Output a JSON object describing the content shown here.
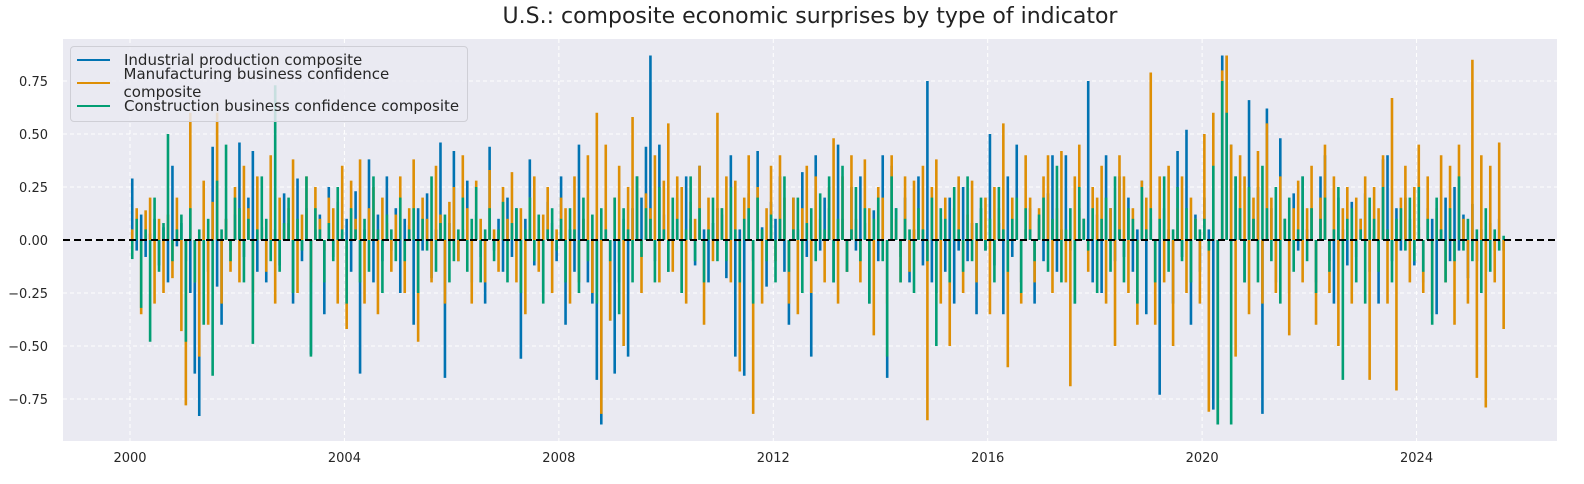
{
  "chart_data": {
    "type": "line",
    "title": "U.S.: composite economic surprises by type of indicator",
    "xlabel": "",
    "ylabel": "",
    "x_start": "2000-01",
    "x_frequency": "monthly",
    "xlim": [
      1998.75,
      2026.62
    ],
    "ylim": [
      -0.948,
      0.948
    ],
    "x_ticks": [
      2000,
      2004,
      2008,
      2012,
      2016,
      2020,
      2024
    ],
    "x_tick_labels": [
      "2000",
      "2004",
      "2008",
      "2012",
      "2016",
      "2020",
      "2024"
    ],
    "y_ticks": [
      -0.75,
      -0.5,
      -0.25,
      0,
      0.25,
      0.5,
      0.75
    ],
    "y_tick_labels": [
      "−0.75",
      "−0.50",
      "−0.25",
      "0.00",
      "0.25",
      "0.50",
      "0.75"
    ],
    "grid": true,
    "zero_line": {
      "value": 0,
      "style": "dashed",
      "color": "#000000"
    },
    "legend_position": "top-left",
    "background": "#eaeaf2",
    "series": [
      {
        "name": "Industrial production composite",
        "color": "#0173b2",
        "values": [
          0.29,
          -0.05,
          0.12,
          -0.08,
          0.03,
          0.1,
          -0.12,
          0.06,
          -0.2,
          0.35,
          -0.03,
          0.08,
          -0.1,
          -0.25,
          -0.63,
          -0.83,
          0.05,
          -0.15,
          0.44,
          -0.22,
          -0.4,
          0.1,
          -0.05,
          0.12,
          0.46,
          -0.08,
          0.2,
          0.42,
          -0.15,
          0.06,
          -0.2,
          0.1,
          0.05,
          -0.12,
          0.22,
          0.08,
          -0.3,
          0.29,
          -0.1,
          0.15,
          -0.54,
          0.05,
          0.12,
          -0.35,
          0.25,
          -0.08,
          0.18,
          0.03,
          0.1,
          -0.15,
          0.23,
          -0.63,
          0.05,
          0.38,
          -0.2,
          0.12,
          -0.1,
          0.3,
          -0.05,
          0.15,
          -0.25,
          0.1,
          0.07,
          -0.4,
          0.15,
          -0.05,
          0.22,
          -0.18,
          0.05,
          0.46,
          -0.65,
          0.08,
          0.42,
          -0.1,
          0.05,
          0.28,
          -0.2,
          0.12,
          -0.08,
          -0.3,
          0.44,
          -0.05,
          0.1,
          -0.15,
          0.2,
          -0.08,
          0.15,
          -0.56,
          0.1,
          0.38,
          -0.12,
          0.05,
          -0.25,
          0.18,
          0.08,
          -0.1,
          0.3,
          -0.4,
          0.05,
          -0.15,
          0.45,
          0.1,
          -0.2,
          -0.3,
          -0.66,
          -0.87,
          0.05,
          -0.38,
          -0.63,
          -0.2,
          0.1,
          -0.55,
          0.15,
          0.3,
          0.2,
          0.44,
          0.87,
          -0.1,
          0.45,
          0.12,
          -0.15,
          0.05,
          0.2,
          -0.25,
          0.3,
          0.1,
          -0.12,
          0.35,
          0.05,
          -0.2,
          0.08,
          0.15,
          0.12,
          -0.18,
          0.4,
          -0.55,
          0.05,
          -0.64,
          0.22,
          -0.1,
          0.42,
          0.06,
          -0.22,
          0.18,
          0.1,
          0.3,
          -0.15,
          -0.4,
          0.2,
          0.05,
          0.32,
          -0.08,
          -0.55,
          0.4,
          -0.05,
          0.2,
          0.15,
          -0.2,
          0.45,
          0.1,
          -0.15,
          0.25,
          -0.05,
          0.3,
          0.08,
          -0.3,
          0.14,
          -0.1,
          0.4,
          -0.65,
          0.35,
          0.15,
          -0.08,
          0.2,
          -0.2,
          0.05,
          0.3,
          -0.12,
          0.75,
          -0.2,
          -0.25,
          0.1,
          -0.15,
          0.2,
          -0.3,
          -0.05,
          0.25,
          -0.1,
          0.08,
          -0.35,
          0.15,
          -0.05,
          0.5,
          -0.12,
          0.08,
          -0.35,
          0.3,
          -0.08,
          0.45,
          -0.2,
          0.05,
          0.15,
          -0.3,
          0.1,
          -0.1,
          0.22,
          0.4,
          -0.15,
          0.05,
          0.4,
          -0.05,
          -0.3,
          0.15,
          0.1,
          0.75,
          -0.2,
          0.12,
          -0.25,
          0.4,
          0.15,
          -0.1,
          0.3,
          -0.08,
          0.2,
          -0.15,
          0.05,
          0.28,
          -0.35,
          0.1,
          -0.2,
          -0.73,
          0.15,
          0.05,
          -0.3,
          0.42,
          -0.08,
          0.52,
          -0.4,
          0.12,
          -0.15,
          0.2,
          0.05,
          -0.8,
          -0.87,
          0.87,
          0.87,
          0.45,
          0.3,
          0.15,
          -0.2,
          0.66,
          0.1,
          0.25,
          -0.82,
          0.62,
          0.15,
          -0.2,
          0.48,
          0.1,
          -0.25,
          0.22,
          -0.05,
          0.3,
          0.05,
          0.15,
          -0.2,
          0.3,
          0.4,
          -0.1,
          -0.3,
          0.2,
          0.05,
          -0.12,
          0.18,
          -0.08,
          0.1,
          0.22,
          -0.15,
          0.05,
          -0.3,
          0.38,
          0.4,
          -0.1,
          0.15,
          -0.05,
          0.2,
          0.1,
          -0.12,
          0.06,
          -0.2,
          0.15,
          0.1,
          -0.35,
          0.05,
          0.2,
          -0.1,
          0.25,
          -0.05,
          0.12,
          -0.18,
          0.17,
          -0.1,
          0.05,
          -0.15,
          0.08,
          -0.05,
          0.1,
          -0.05
        ]
      },
      {
        "name": "Manufacturing business confidence composite",
        "color": "#de8f05",
        "values": [
          0.05,
          0.15,
          -0.35,
          0.14,
          0.2,
          -0.3,
          0.1,
          -0.25,
          0.12,
          -0.18,
          0.2,
          -0.43,
          -0.78,
          0.6,
          -0.2,
          -0.55,
          0.28,
          -0.4,
          0.18,
          0.6,
          -0.3,
          0.1,
          -0.15,
          0.25,
          -0.2,
          0.35,
          0.15,
          -0.25,
          0.3,
          0.1,
          -0.15,
          0.4,
          -0.3,
          0.2,
          0.05,
          0.15,
          0.38,
          -0.25,
          0.12,
          0.3,
          -0.2,
          0.25,
          0.1,
          -0.05,
          0.2,
          0.15,
          -0.3,
          0.35,
          -0.42,
          0.28,
          0.1,
          0.38,
          -0.3,
          0.15,
          0.25,
          -0.35,
          0.2,
          0.08,
          -0.15,
          0.12,
          0.3,
          -0.25,
          0.15,
          0.38,
          -0.48,
          0.2,
          0.1,
          -0.2,
          0.35,
          0.12,
          -0.3,
          0.18,
          0.25,
          -0.1,
          0.4,
          0.15,
          -0.3,
          0.28,
          0.1,
          -0.2,
          0.33,
          0.05,
          -0.15,
          0.25,
          0.1,
          0.32,
          -0.2,
          0.15,
          -0.35,
          0.2,
          0.3,
          -0.15,
          0.12,
          0.25,
          -0.25,
          0.05,
          0.2,
          0.15,
          -0.3,
          0.3,
          -0.2,
          0.1,
          0.4,
          -0.25,
          0.6,
          -0.82,
          0.45,
          -0.38,
          0.2,
          0.35,
          -0.5,
          0.25,
          0.58,
          0.3,
          -0.25,
          0.22,
          0.15,
          0.4,
          -0.2,
          0.28,
          0.55,
          -0.15,
          0.3,
          0.25,
          -0.3,
          0.18,
          0.1,
          0.35,
          -0.4,
          0.2,
          -0.1,
          0.6,
          0.15,
          0.3,
          -0.2,
          0.28,
          -0.62,
          0.2,
          0.4,
          -0.82,
          0.25,
          -0.3,
          0.15,
          0.35,
          -0.1,
          0.4,
          0.2,
          -0.3,
          0.2,
          -0.35,
          0.15,
          0.35,
          -0.25,
          0.3,
          0.1,
          -0.2,
          0.25,
          0.48,
          -0.3,
          0.3,
          -0.15,
          0.4,
          0.1,
          -0.2,
          0.38,
          0.15,
          -0.45,
          0.25,
          0.2,
          -0.3,
          0.4,
          0.1,
          -0.2,
          0.3,
          -0.15,
          0.28,
          0.05,
          0.35,
          -0.85,
          0.25,
          0.38,
          -0.3,
          0.2,
          -0.5,
          0.15,
          0.3,
          -0.25,
          0.12,
          0.28,
          -0.2,
          0.1,
          0.2,
          -0.35,
          0.25,
          0.15,
          0.55,
          -0.6,
          0.2,
          0.1,
          -0.3,
          0.4,
          0.2,
          -0.2,
          0.15,
          0.3,
          0.4,
          -0.25,
          0.15,
          0.42,
          -0.2,
          -0.69,
          0.3,
          0.45,
          0.1,
          -0.15,
          0.25,
          0.2,
          0.35,
          -0.3,
          0.15,
          -0.5,
          0.4,
          0.3,
          -0.25,
          0.15,
          -0.4,
          0.28,
          0.2,
          0.79,
          -0.4,
          0.3,
          -0.2,
          0.35,
          -0.5,
          0.15,
          0.3,
          -0.25,
          0.2,
          0.1,
          -0.3,
          0.5,
          -0.81,
          0.6,
          -0.85,
          0.8,
          0.87,
          0.45,
          -0.55,
          0.4,
          0.3,
          -0.35,
          0.2,
          0.42,
          -0.3,
          0.55,
          0.2,
          -0.25,
          0.3,
          0.1,
          -0.45,
          0.15,
          0.28,
          -0.2,
          0.15,
          0.35,
          -0.4,
          0.2,
          0.45,
          -0.25,
          0.3,
          -0.5,
          0.15,
          0.25,
          -0.3,
          0.2,
          0.1,
          0.3,
          -0.66,
          0.25,
          0.15,
          0.4,
          -0.3,
          0.67,
          -0.71,
          0.2,
          0.35,
          -0.2,
          0.25,
          0.45,
          -0.25,
          0.3,
          -0.35,
          0.15,
          0.4,
          -0.2,
          0.35,
          -0.4,
          0.45,
          0.1,
          -0.3,
          0.85,
          -0.65,
          0.4,
          -0.79,
          0.35,
          -0.2,
          0.46,
          -0.42
        ]
      },
      {
        "name": "Construction business confidence composite",
        "color": "#029e73",
        "values": [
          -0.09,
          0.1,
          -0.32,
          0.05,
          -0.48,
          0.2,
          -0.15,
          0.08,
          0.5,
          -0.1,
          0.05,
          0.12,
          -0.48,
          0.15,
          -0.2,
          0.05,
          -0.4,
          0.1,
          -0.64,
          0.28,
          0.05,
          0.45,
          -0.1,
          0.2,
          0.15,
          -0.2,
          0.1,
          -0.49,
          0.05,
          0.3,
          0.1,
          -0.1,
          0.73,
          -0.15,
          0.08,
          0.2,
          -0.25,
          0.1,
          -0.05,
          0.3,
          -0.55,
          0.15,
          0.05,
          -0.2,
          0.08,
          -0.1,
          0.25,
          0.05,
          -0.3,
          0.15,
          0.05,
          -0.2,
          0.1,
          -0.15,
          0.3,
          0.05,
          -0.25,
          0.12,
          0.05,
          -0.1,
          0.2,
          -0.1,
          0.05,
          0.15,
          -0.25,
          0.1,
          -0.05,
          0.3,
          -0.15,
          0.08,
          0.12,
          -0.2,
          -0.1,
          0.05,
          0.2,
          -0.15,
          0.1,
          0.25,
          -0.2,
          0.05,
          0.15,
          -0.1,
          0.05,
          0.18,
          -0.2,
          0.08,
          0.15,
          -0.25,
          0.05,
          0.2,
          -0.1,
          0.12,
          -0.3,
          0.05,
          0.15,
          -0.05,
          0.1,
          -0.2,
          0.15,
          0.05,
          -0.25,
          0.2,
          -0.1,
          0.12,
          -0.3,
          0.15,
          0.05,
          -0.1,
          0.2,
          -0.35,
          0.15,
          0.05,
          -0.2,
          0.3,
          -0.08,
          0.15,
          0.1,
          -0.2,
          0.25,
          0.05,
          -0.15,
          0.2,
          0.1,
          -0.25,
          0.05,
          0.3,
          -0.1,
          0.15,
          -0.2,
          0.05,
          0.2,
          -0.1,
          0.15,
          -0.1,
          0.25,
          0.05,
          -0.2,
          0.1,
          0.15,
          -0.3,
          0.2,
          0.05,
          -0.1,
          0.12,
          -0.2,
          0.1,
          0.3,
          -0.15,
          0.05,
          0.2,
          -0.25,
          0.08,
          0.15,
          -0.1,
          0.22,
          0.05,
          0.3,
          -0.2,
          0.1,
          0.35,
          -0.15,
          0.05,
          0.25,
          -0.1,
          0.15,
          -0.3,
          0.1,
          0.2,
          -0.1,
          -0.55,
          0.3,
          0.15,
          -0.2,
          0.1,
          0.05,
          -0.25,
          0.15,
          0.05,
          -0.1,
          0.2,
          -0.5,
          0.15,
          0.1,
          -0.2,
          0.25,
          0.05,
          -0.15,
          0.3,
          -0.1,
          0.08,
          0.2,
          -0.05,
          0.1,
          -0.2,
          0.25,
          0.05,
          -0.15,
          0.1,
          0.2,
          -0.25,
          0.15,
          0.05,
          -0.1,
          0.12,
          0.2,
          -0.15,
          0.1,
          0.35,
          -0.2,
          0.05,
          0.15,
          -0.3,
          0.25,
          0.1,
          -0.05,
          0.15,
          -0.25,
          0.1,
          0.2,
          -0.15,
          0.3,
          0.05,
          -0.2,
          0.15,
          0.1,
          -0.3,
          0.25,
          0.05,
          0.15,
          -0.2,
          0.1,
          0.3,
          -0.15,
          0.05,
          0.25,
          -0.1,
          0.15,
          -0.2,
          0.1,
          0.05,
          0.1,
          -0.05,
          0.35,
          -0.87,
          0.75,
          0.6,
          -0.87,
          0.3,
          0.15,
          -0.2,
          0.25,
          0.1,
          -0.2,
          0.35,
          0.15,
          -0.1,
          0.25,
          -0.3,
          0.1,
          0.2,
          -0.15,
          0.05,
          0.3,
          -0.1,
          0.15,
          -0.25,
          0.1,
          0.2,
          -0.15,
          0.05,
          0.25,
          -0.66,
          0.1,
          0.15,
          -0.2,
          0.05,
          -0.3,
          0.2,
          0.1,
          -0.15,
          0.25,
          0.05,
          -0.2,
          0.1,
          0.15,
          -0.05,
          0.2,
          -0.1,
          0.25,
          -0.15,
          0.1,
          -0.4,
          0.2,
          0.05,
          -0.2,
          0.15,
          -0.1,
          0.3,
          -0.05,
          0.1,
          -0.1,
          0.05,
          -0.25,
          0.15,
          -0.15,
          0.05,
          -0.05,
          0.02
        ]
      }
    ]
  }
}
